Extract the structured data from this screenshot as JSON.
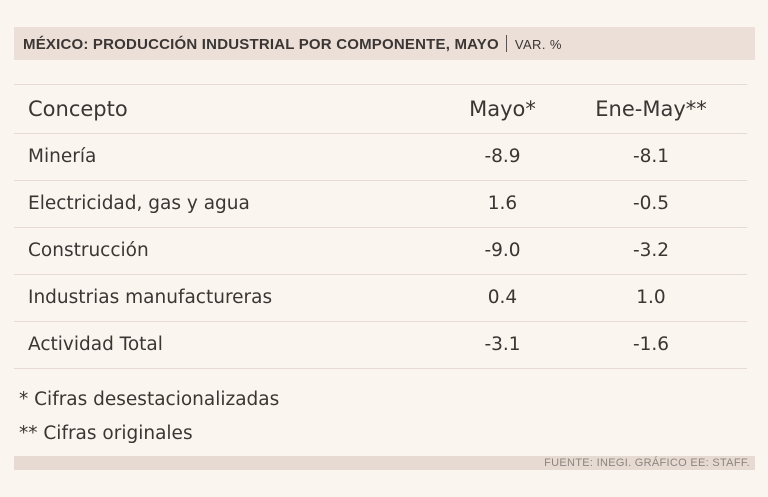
{
  "header": {
    "title": "MÉXICO: PRODUCCIÓN INDUSTRIAL POR COMPONENTE, MAYO",
    "unit": "VAR. %"
  },
  "chart_data": {
    "type": "table",
    "columns": [
      "Concepto",
      "Mayo*",
      "Ene-May**"
    ],
    "rows": [
      {
        "concepto": "Minería",
        "mayo": "-8.9",
        "ene_may": "-8.1"
      },
      {
        "concepto": "Electricidad, gas y agua",
        "mayo": "1.6",
        "ene_may": "-0.5"
      },
      {
        "concepto": "Construcción",
        "mayo": "-9.0",
        "ene_may": "-3.2"
      },
      {
        "concepto": "Industrias manufactureras",
        "mayo": "0.4",
        "ene_may": "1.0"
      },
      {
        "concepto": "Actividad Total",
        "mayo": "-3.1",
        "ene_may": "-1.6"
      }
    ]
  },
  "notes": [
    "* Cifras desestacionalizadas",
    "** Cifras originales"
  ],
  "footer": {
    "source": "FUENTE: INEGI. GRÁFICO EE: STAFF."
  }
}
